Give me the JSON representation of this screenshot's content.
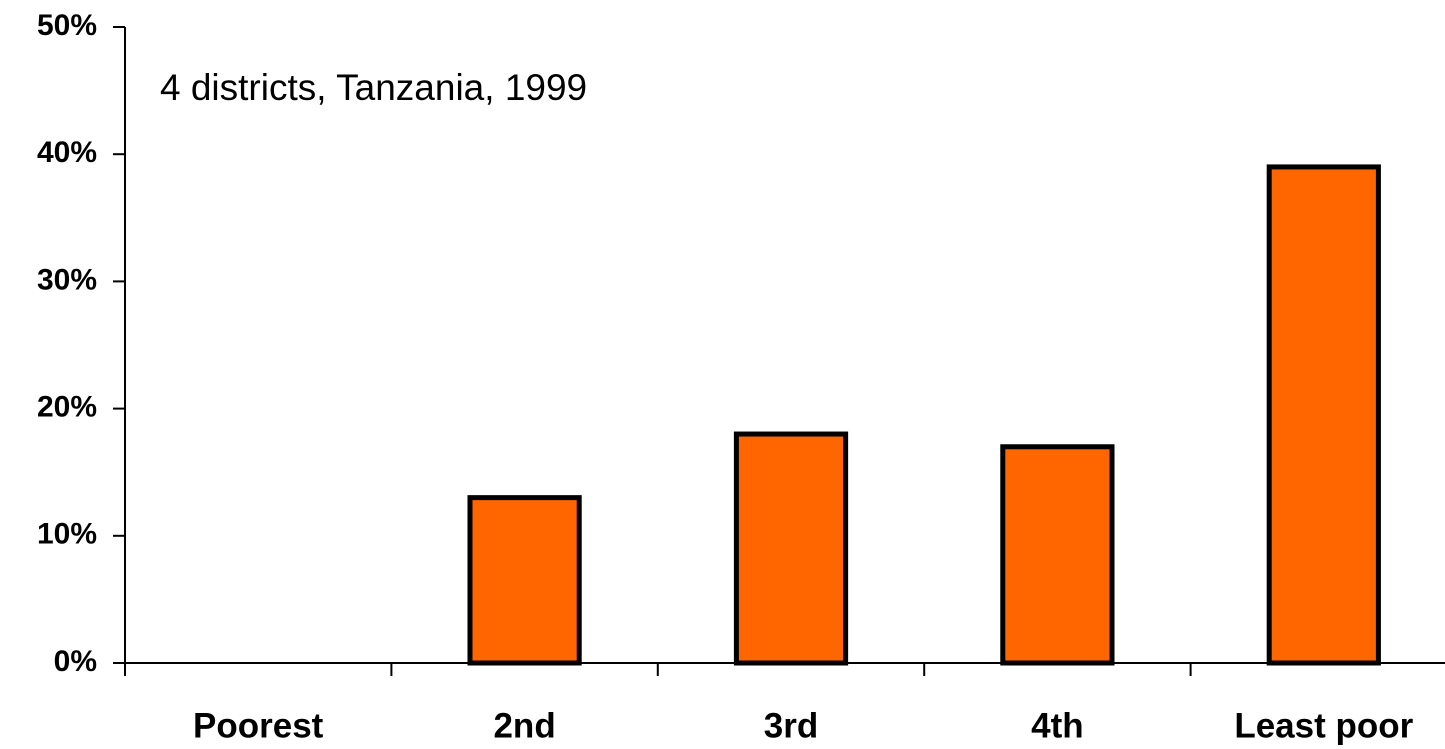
{
  "chart_data": {
    "type": "bar",
    "annotation": "4 districts, Tanzania, 1999",
    "categories": [
      "Poorest",
      "2nd",
      "3rd",
      "4th",
      "Least poor"
    ],
    "values": [
      0,
      13,
      18,
      17,
      39
    ],
    "color": "#ff6600",
    "ylim": [
      0,
      50
    ],
    "yticks": [
      {
        "value": 0,
        "label": "0%"
      },
      {
        "value": 10,
        "label": "10%"
      },
      {
        "value": 20,
        "label": "20%"
      },
      {
        "value": 30,
        "label": "30%"
      },
      {
        "value": 40,
        "label": "40%"
      },
      {
        "value": 50,
        "label": "50%"
      }
    ],
    "grid": false
  }
}
